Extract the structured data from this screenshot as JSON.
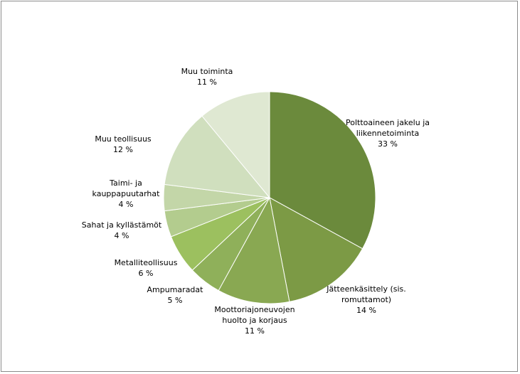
{
  "chart_data": {
    "type": "pie",
    "title": "",
    "slices": [
      {
        "label": [
          "Polttoaineen jakelu ja",
          "liikennetoiminta"
        ],
        "value_label": "33 %",
        "value": 33,
        "color": "#6b8a3c"
      },
      {
        "label": [
          "Jätteenkäsittely (sis.",
          "romuttamot)"
        ],
        "value_label": "14 %",
        "value": 14,
        "color": "#7c9a45"
      },
      {
        "label": [
          "Moottoriajoneuvojen",
          "huolto ja korjaus"
        ],
        "value_label": "11 %",
        "value": 11,
        "color": "#89a852"
      },
      {
        "label": [
          "Ampumaradat"
        ],
        "value_label": "5 %",
        "value": 5,
        "color": "#8fb05a"
      },
      {
        "label": [
          "Metalliteollisuus"
        ],
        "value_label": "6 %",
        "value": 6,
        "color": "#9cc05f"
      },
      {
        "label": [
          "Sahat ja kyllästämöt"
        ],
        "value_label": "4 %",
        "value": 4,
        "color": "#b3cc8e"
      },
      {
        "label": [
          "Taimi- ja",
          "kauppapuutarhat"
        ],
        "value_label": "4 %",
        "value": 4,
        "color": "#c3d6a8"
      },
      {
        "label": [
          "Muu teollisuus"
        ],
        "value_label": "12 %",
        "value": 12,
        "color": "#d0dfbe"
      },
      {
        "label": [
          "Muu toiminta"
        ],
        "value_label": "11 %",
        "value": 11,
        "color": "#dfe8d2"
      }
    ]
  }
}
